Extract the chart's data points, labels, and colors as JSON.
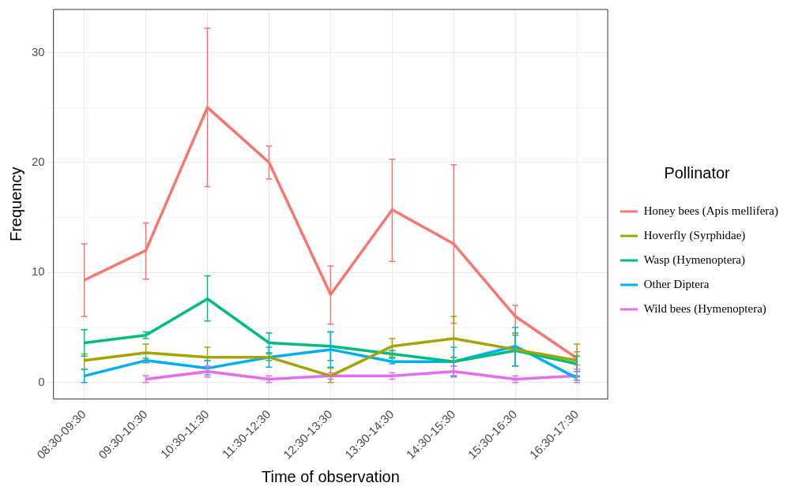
{
  "chart_data": {
    "type": "line",
    "xlabel": "Time of observation",
    "ylabel": "Frequency",
    "legend_title": "Pollinator",
    "legend": "right",
    "grid": true,
    "categories": [
      "08:30-09:30",
      "09:30-10:30",
      "10:30-11:30",
      "11:30-12:30",
      "12:30-13:30",
      "13:30-14:30",
      "14:30-15:30",
      "15:30-16:30",
      "16:30-17:30"
    ],
    "ylim": [
      -1.5,
      33.9
    ],
    "yticks": [
      0,
      {
        "value": 5,
        "label": null
      },
      10,
      {
        "value": 15,
        "label": null
      },
      20,
      {
        "value": 25,
        "label": null
      },
      30
    ],
    "series": [
      {
        "name": "Honey bees (Apis mellifera)",
        "color": "#f8766d",
        "values": [
          9.3,
          12,
          25,
          20,
          8,
          15.7,
          12.6,
          6,
          2.2
        ],
        "errors": [
          [
            6,
            12.6
          ],
          [
            9.4,
            14.5
          ],
          [
            17.8,
            32.2
          ],
          [
            18.5,
            21.5
          ],
          [
            5.3,
            10.6
          ],
          [
            11,
            20.3
          ],
          [
            5.4,
            19.8
          ],
          [
            4.5,
            7
          ],
          [
            1.6,
            2.8
          ]
        ]
      },
      {
        "name": "Hoverfly (Syrphidae)",
        "color": "#a3a500",
        "values": [
          2,
          2.7,
          2.3,
          2.3,
          0.6,
          3.3,
          4,
          3,
          2
        ],
        "errors": [
          [
            1.2,
            2.6
          ],
          [
            1.9,
            3.5
          ],
          [
            2,
            3.2
          ],
          [
            2,
            2.6
          ],
          [
            0,
            1.3
          ],
          [
            2.5,
            4
          ],
          [
            2,
            6
          ],
          [
            1.5,
            4.5
          ],
          [
            0.5,
            3.5
          ]
        ]
      },
      {
        "name": "Wasp (Hymenoptera)",
        "color": "#00bf7d",
        "values": [
          3.6,
          4.3,
          7.6,
          3.6,
          3.3,
          2.6,
          1.9,
          2.9,
          1.7
        ],
        "errors": [
          [
            2.4,
            4.8
          ],
          [
            4,
            4.6
          ],
          [
            5.6,
            9.7
          ],
          [
            2.7,
            4.5
          ],
          [
            2,
            4.6
          ],
          [
            2.3,
            2.9
          ],
          [
            1.5,
            2.3
          ],
          [
            1.5,
            4.3
          ],
          [
            1,
            2.4
          ]
        ]
      },
      {
        "name": "Other Diptera",
        "color": "#00b0f6",
        "values": [
          0.6,
          2,
          1.3,
          2.3,
          3,
          1.9,
          1.9,
          3.3,
          0.4
        ],
        "errors": [
          [
            0,
            1.2
          ],
          [
            1.8,
            2.2
          ],
          [
            0.7,
            2
          ],
          [
            1.4,
            3.2
          ],
          [
            1.4,
            4.6
          ],
          [
            1.7,
            2.2
          ],
          [
            0.6,
            3.2
          ],
          [
            1.5,
            5
          ],
          [
            0.2,
            0.6
          ]
        ]
      },
      {
        "name": "Wild bees (Hymenoptera)",
        "color": "#e76bf3",
        "values": [
          null,
          0.3,
          1,
          0.3,
          0.6,
          0.6,
          1,
          0.3,
          0.6
        ],
        "errors": [
          null,
          [
            0,
            0.6
          ],
          [
            0.5,
            1.5
          ],
          [
            0,
            0.6
          ],
          [
            0.3,
            0.9
          ],
          [
            0.3,
            0.9
          ],
          [
            0.5,
            1.5
          ],
          [
            0,
            0.6
          ],
          [
            0,
            1.2
          ]
        ]
      }
    ]
  }
}
